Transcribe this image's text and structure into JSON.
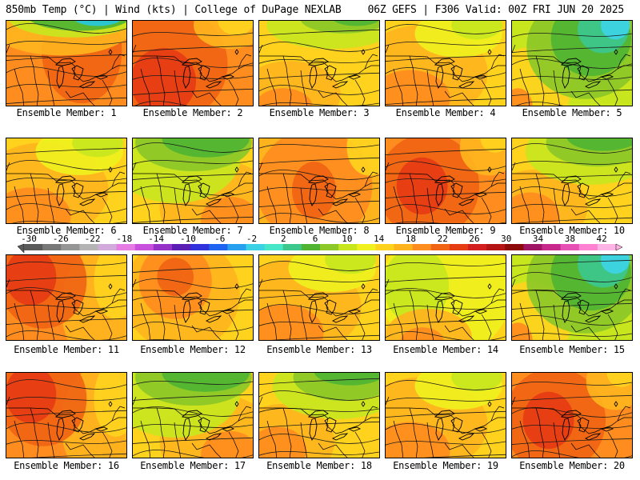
{
  "header": {
    "title_left": "850mb Temp (°C) | Wind (kts) | College of DuPage NEXLAB",
    "title_right": "06Z GEFS | F306 Valid: 00Z FRI JUN 20 2025"
  },
  "colorbar": {
    "tick_labels": [
      "-30",
      "-26",
      "-22",
      "-18",
      "-14",
      "-10",
      "-6",
      "-2",
      "2",
      "6",
      "10",
      "14",
      "18",
      "22",
      "26",
      "30",
      "34",
      "38",
      "42"
    ],
    "colors": [
      "#5a5a5a",
      "#787878",
      "#969696",
      "#b4b4b4",
      "#d2aadc",
      "#e47ce4",
      "#c850dc",
      "#9632c8",
      "#5a1eb4",
      "#3232dc",
      "#1e64f0",
      "#28a0f0",
      "#3cd2e6",
      "#46e6c8",
      "#3cc88c",
      "#50b432",
      "#8cc828",
      "#c8e61e",
      "#f0f01e",
      "#ffd21e",
      "#ffb41e",
      "#ff8c1e",
      "#f06414",
      "#e63c14",
      "#d21e1e",
      "#b41414",
      "#8c0a0a",
      "#a01464",
      "#c8288c",
      "#e650b4",
      "#ff82d2",
      "#ffb4e6"
    ]
  },
  "members": [
    {
      "label": "Ensemble Member: 1",
      "scheme": "cool_north"
    },
    {
      "label": "Ensemble Member: 2",
      "scheme": "hot"
    },
    {
      "label": "Ensemble Member: 3",
      "scheme": "yellow_green_top"
    },
    {
      "label": "Ensemble Member: 4",
      "scheme": "yellow_orange"
    },
    {
      "label": "Ensemble Member: 5",
      "scheme": "green_cyan"
    },
    {
      "label": "Ensemble Member: 6",
      "scheme": "yellow_orange"
    },
    {
      "label": "Ensemble Member: 7",
      "scheme": "green_diag"
    },
    {
      "label": "Ensemble Member: 8",
      "scheme": "orange"
    },
    {
      "label": "Ensemble Member: 9",
      "scheme": "hot_orange"
    },
    {
      "label": "Ensemble Member: 10",
      "scheme": "green_top"
    },
    {
      "label": "Ensemble Member: 11",
      "scheme": "hot_red_nw"
    },
    {
      "label": "Ensemble Member: 12",
      "scheme": "orange_yellow"
    },
    {
      "label": "Ensemble Member: 13",
      "scheme": "yellow_orange"
    },
    {
      "label": "Ensemble Member: 14",
      "scheme": "yellow_green"
    },
    {
      "label": "Ensemble Member: 15",
      "scheme": "green_cyan"
    },
    {
      "label": "Ensemble Member: 16",
      "scheme": "hot_red_nw"
    },
    {
      "label": "Ensemble Member: 17",
      "scheme": "green_diag"
    },
    {
      "label": "Ensemble Member: 18",
      "scheme": "green_top"
    },
    {
      "label": "Ensemble Member: 19",
      "scheme": "yellow_orange"
    },
    {
      "label": "Ensemble Member: 20",
      "scheme": "hot_orange"
    }
  ]
}
